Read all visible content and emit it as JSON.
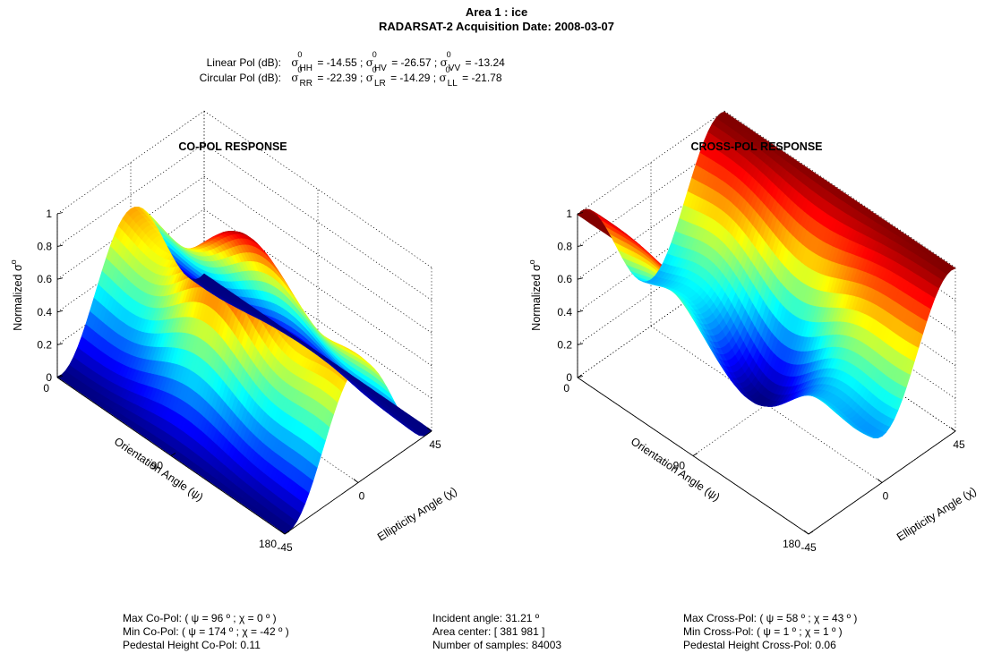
{
  "header": {
    "title_line1": "Area 1 :  ice",
    "title_line2": "RADARSAT-2 Acquisition Date: 2008-03-07",
    "linear_label": "Linear Pol (dB):",
    "circular_label": "Circular Pol (dB):",
    "sigma_symbol": "σ",
    "sigma_superscript": "0",
    "linear": [
      {
        "sub": "HH",
        "value": "= -14.55 ;"
      },
      {
        "sub": "HV",
        "value": "= -26.57 ;"
      },
      {
        "sub": "VV",
        "value": "= -13.24"
      }
    ],
    "circular": [
      {
        "sub": "RR",
        "value": "= -22.39 ;"
      },
      {
        "sub": "LR",
        "value": "= -14.29 ;"
      },
      {
        "sub": "LL",
        "value": "= -21.78"
      }
    ]
  },
  "chart_data": [
    {
      "type": "surface",
      "title": "CO-POL RESPONSE",
      "xlabel": "Orientation Angle (ψ)",
      "ylabel": "Ellipticity Angle (χ)",
      "zlabel": "Normalized σ",
      "zlabel_superscript": "o",
      "x_ticks": [
        "0",
        "90",
        "180"
      ],
      "y_ticks": [
        "-45",
        "0",
        "45"
      ],
      "z_ticks": [
        "0",
        "0.2",
        "0.4",
        "0.6",
        "0.8",
        "1"
      ],
      "xlim": [
        0,
        180
      ],
      "ylim": [
        -45,
        45
      ],
      "zlim": [
        0,
        1
      ],
      "max": {
        "psi": 96,
        "chi": 0
      },
      "min": {
        "psi": 174,
        "chi": -42
      },
      "pedestal": 0.11,
      "colormap": "jet"
    },
    {
      "type": "surface",
      "title": "CROSS-POL RESPONSE",
      "xlabel": "Orientation Angle (ψ)",
      "ylabel": "Ellipticity Angle (χ)",
      "zlabel": "Normalized σ",
      "zlabel_superscript": "o",
      "x_ticks": [
        "0",
        "90",
        "180"
      ],
      "y_ticks": [
        "-45",
        "0",
        "45"
      ],
      "z_ticks": [
        "0",
        "0.2",
        "0.4",
        "0.6",
        "0.8",
        "1"
      ],
      "xlim": [
        0,
        180
      ],
      "ylim": [
        -45,
        45
      ],
      "zlim": [
        0,
        1
      ],
      "max": {
        "psi": 58,
        "chi": 43
      },
      "min": {
        "psi": 1,
        "chi": 1
      },
      "pedestal": 0.06,
      "colormap": "jet"
    }
  ],
  "stats": {
    "left": [
      "Max Co-Pol:  ( ψ = 96 º ;  χ = 0 º )",
      "Min Co-Pol:  ( ψ = 174 º ;  χ = -42 º )",
      "Pedestal Height Co-Pol: 0.11"
    ],
    "center": [
      "Incident angle: 31.21 º",
      "Area center: [ 381  981 ]",
      "Number of samples: 84003"
    ],
    "right": [
      "Max Cross-Pol:  ( ψ = 58 º ;  χ = 43 º )",
      "Min Cross-Pol:  ( ψ = 1 º ;  χ = 1 º )",
      "Pedestal Height Cross-Pol: 0.06"
    ]
  }
}
